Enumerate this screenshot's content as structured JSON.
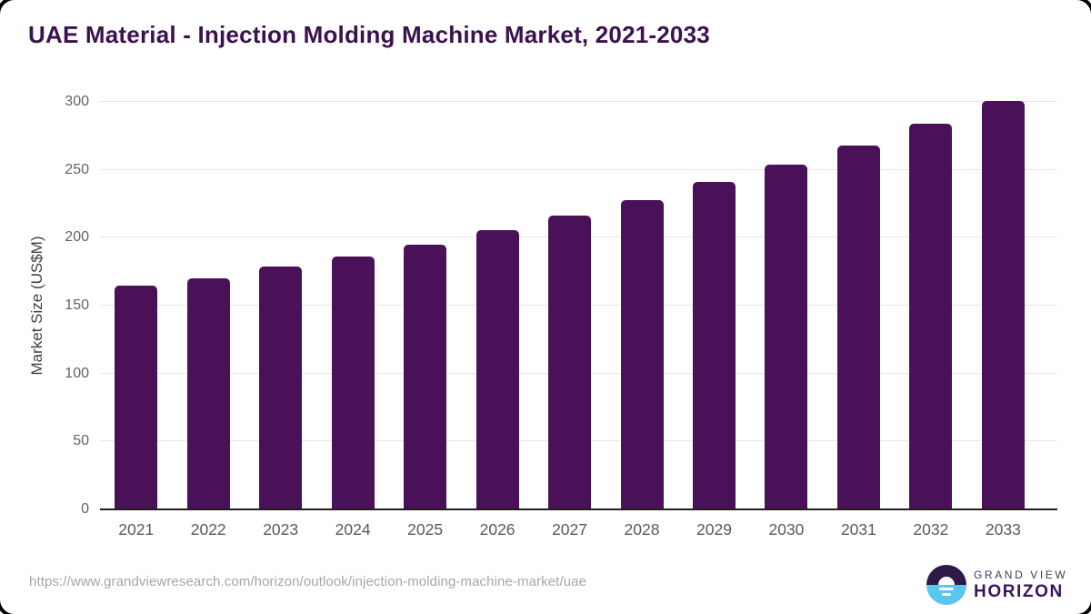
{
  "header": {
    "title": "UAE Material - Injection Molding Machine Market, 2021-2033"
  },
  "chart_data": {
    "type": "bar",
    "title": "UAE Material - Injection Molding Machine Market, 2021-2033",
    "categories": [
      "2021",
      "2022",
      "2023",
      "2024",
      "2025",
      "2026",
      "2027",
      "2028",
      "2029",
      "2030",
      "2031",
      "2032",
      "2033"
    ],
    "values": [
      165,
      170,
      178.5,
      186.5,
      195,
      205.5,
      216.5,
      228,
      241,
      254,
      268,
      284,
      300.5
    ],
    "xlabel": "",
    "ylabel": "Market Size (US$M)",
    "ylim": [
      0,
      300
    ],
    "y_ticks": [
      0,
      50,
      100,
      150,
      200,
      250,
      300
    ],
    "grid": "horizontal",
    "legend": false,
    "bar_color": "#4a1158"
  },
  "footer": {
    "source_url": "https://www.grandviewresearch.com/horizon/outlook/injection-molding-machine-market/uae",
    "logo": {
      "brand_top": "GRAND VIEW",
      "brand_bottom": "HORIZON"
    }
  },
  "colors": {
    "bar": "#4a1158",
    "title_text": "#3b114e",
    "gridline": "#e6e6e6",
    "axis_line": "#1f1f1f",
    "tick_label": "#646464",
    "url_text": "#a6a6a6",
    "logo_dark_half": "#2d1a47",
    "logo_blue_half": "#5bc5f1"
  }
}
